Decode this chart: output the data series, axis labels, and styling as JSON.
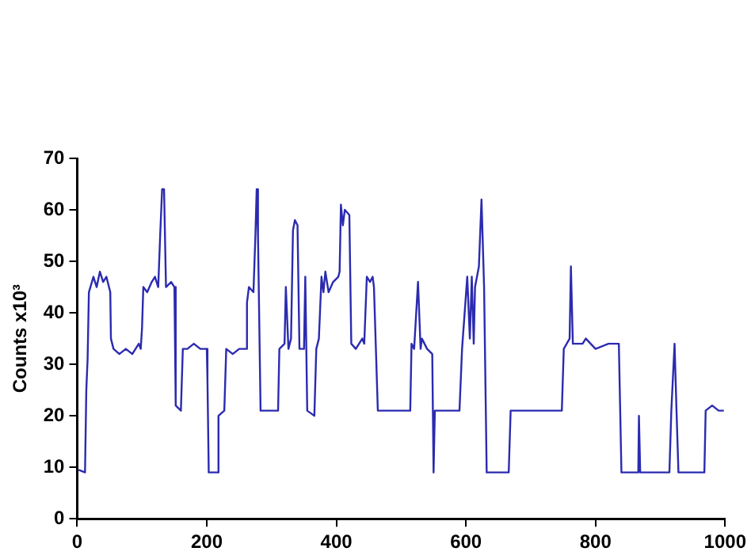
{
  "chart_data": {
    "type": "line",
    "ylabel": "Counts x10³",
    "xlim": [
      0,
      1000
    ],
    "ylim": [
      0,
      70
    ],
    "xticks": [
      0,
      200,
      400,
      600,
      800,
      1000
    ],
    "yticks": [
      0,
      10,
      20,
      30,
      40,
      50,
      60,
      70
    ],
    "grid": false,
    "legend": false,
    "marker": "none",
    "line_style": "solid",
    "x": [
      2,
      12,
      14,
      16,
      18,
      25,
      30,
      35,
      40,
      45,
      51,
      52,
      56,
      65,
      75,
      85,
      95,
      98,
      100,
      102,
      108,
      115,
      120,
      125,
      128,
      131,
      134,
      137,
      145,
      150,
      152,
      160,
      163,
      170,
      180,
      190,
      200,
      201,
      203,
      216,
      218,
      227,
      230,
      240,
      250,
      260,
      262,
      265,
      272,
      275,
      277,
      279,
      283,
      300,
      310,
      312,
      320,
      322,
      326,
      330,
      333,
      336,
      340,
      343,
      350,
      352,
      355,
      366,
      369,
      373,
      377,
      380,
      383,
      388,
      395,
      403,
      405,
      407,
      410,
      413,
      420,
      423,
      430,
      440,
      443,
      447,
      452,
      456,
      458,
      464,
      480,
      500,
      514,
      516,
      520,
      526,
      530,
      532,
      540,
      548,
      550,
      552,
      570,
      590,
      594,
      602,
      606,
      609,
      612,
      614,
      620,
      624,
      628,
      632,
      650,
      666,
      669,
      700,
      748,
      751,
      760,
      762,
      765,
      780,
      785,
      800,
      820,
      836,
      840,
      866,
      867,
      869,
      914,
      917,
      922,
      925,
      928,
      968,
      970,
      980,
      990,
      998
    ],
    "series": [
      {
        "color": "#2b2bb0",
        "values": [
          9.5,
          9,
          25,
          31,
          44,
          47,
          45,
          48,
          46,
          47,
          44,
          35,
          33,
          32,
          33,
          32,
          34,
          33,
          37,
          45,
          44,
          46,
          47,
          45,
          55,
          64,
          64,
          45,
          46,
          45,
          22,
          21,
          33,
          33,
          34,
          33,
          33,
          27,
          9,
          9,
          20,
          21,
          33,
          32,
          33,
          33,
          42,
          45,
          44,
          55,
          64,
          55,
          21,
          21,
          21,
          33,
          34,
          45,
          33,
          35,
          56,
          58,
          57,
          33,
          33,
          47,
          21,
          20,
          33,
          35,
          47,
          44,
          48,
          44,
          46,
          47,
          48,
          61,
          57,
          60,
          59,
          34,
          33,
          35,
          34,
          47,
          46,
          47,
          45,
          21,
          21,
          21,
          21,
          34,
          33,
          46,
          33,
          35,
          33,
          32,
          9,
          21,
          21,
          21,
          33,
          47,
          35,
          47,
          34,
          45,
          49,
          62,
          45,
          9,
          9,
          9,
          21,
          21,
          21,
          33,
          35,
          49,
          34,
          34,
          35,
          33,
          34,
          34,
          9,
          9,
          20,
          9,
          9,
          21,
          34,
          21,
          9,
          9,
          21,
          22,
          21,
          21
        ]
      }
    ]
  }
}
